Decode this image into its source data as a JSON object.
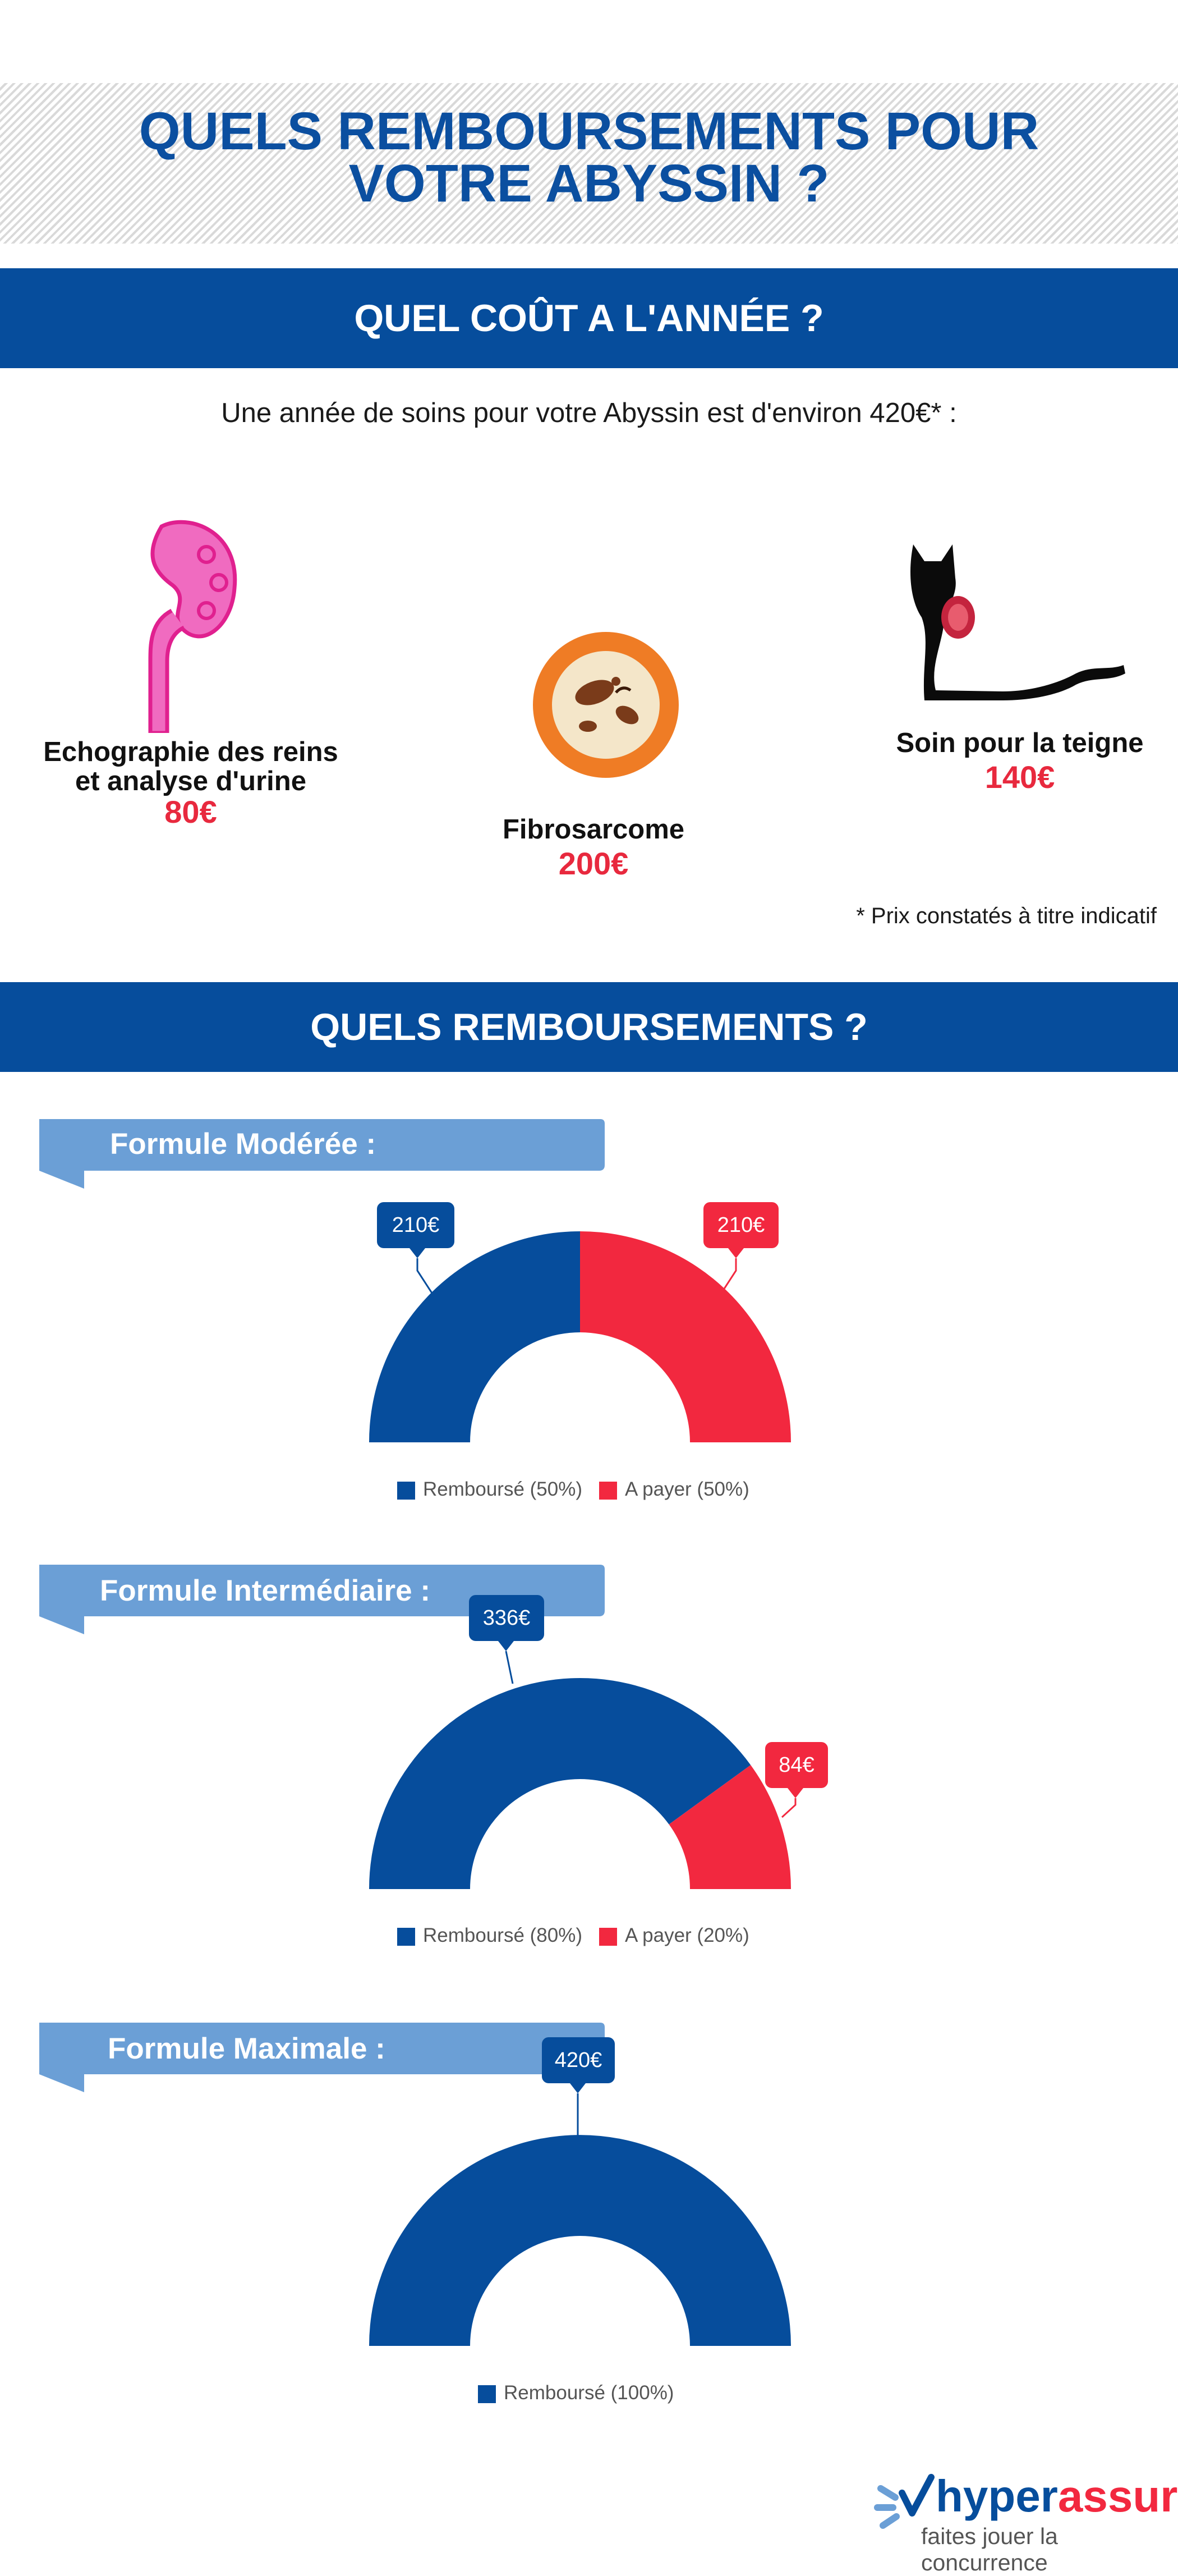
{
  "header": {
    "title_line1": "QUELS REMBOURSEMENTS POUR",
    "title_line2": "VOTRE ABYSSIN ?"
  },
  "section_cost": {
    "heading": "QUEL COÛT A L'ANNÉE ?",
    "intro": "Une année de soins pour votre Abyssin est d'environ 420€* :",
    "items": [
      {
        "label_line1": "Echographie des reins",
        "label_line2": "et analyse d'urine",
        "price": "80€",
        "icon": "kidney-icon"
      },
      {
        "label_line1": "Fibrosarcome",
        "label_line2": "",
        "price": "200€",
        "icon": "cell-icon"
      },
      {
        "label_line1": "Soin pour la teigne",
        "label_line2": "",
        "price": "140€",
        "icon": "cat-icon"
      }
    ],
    "note": "* Prix constatés à titre indicatif"
  },
  "section_reimb": {
    "heading": "QUELS REMBOURSEMENTS ?",
    "formulas": [
      {
        "label": "Formule Modérée :",
        "callouts": [
          "210€",
          "210€"
        ],
        "legend": [
          "Remboursé (50%)",
          "A payer (50%)"
        ]
      },
      {
        "label": "Formule Intermédiaire :",
        "callouts": [
          "336€",
          "84€"
        ],
        "legend": [
          "Remboursé (80%)",
          "A payer (20%)"
        ]
      },
      {
        "label": "Formule Maximale :",
        "callouts": [
          "420€"
        ],
        "legend": [
          "Remboursé (100%)"
        ]
      }
    ]
  },
  "chart_data": [
    {
      "type": "pie",
      "subtype": "semi-donut",
      "title": "Formule Modérée :",
      "categories": [
        "Remboursé",
        "A payer"
      ],
      "values": [
        210,
        210
      ],
      "percent": [
        50,
        50
      ],
      "colors": [
        "#064d9c",
        "#f2283f"
      ]
    },
    {
      "type": "pie",
      "subtype": "semi-donut",
      "title": "Formule Intermédiaire :",
      "categories": [
        "Remboursé",
        "A payer"
      ],
      "values": [
        336,
        84
      ],
      "percent": [
        80,
        20
      ],
      "colors": [
        "#064d9c",
        "#f2283f"
      ]
    },
    {
      "type": "pie",
      "subtype": "semi-donut",
      "title": "Formule Maximale :",
      "categories": [
        "Remboursé"
      ],
      "values": [
        420
      ],
      "percent": [
        100
      ],
      "colors": [
        "#064d9c"
      ]
    }
  ],
  "colors": {
    "brand_blue": "#064d9c",
    "accent_red": "#f2283f",
    "ribbon_blue": "#6b9fd6",
    "kidney_pink": "#f06bc0"
  },
  "footer": {
    "logo_part1": "hyper",
    "logo_part2": "assur",
    "tagline": "faites jouer la concurrence"
  }
}
